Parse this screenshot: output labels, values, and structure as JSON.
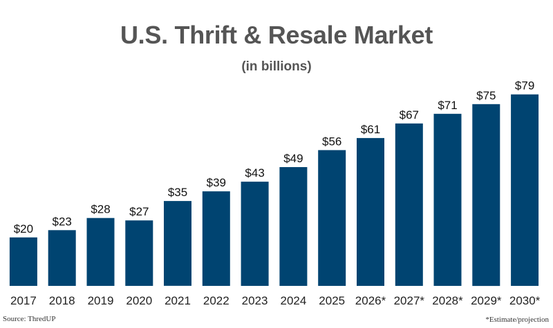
{
  "chart_data": {
    "type": "bar",
    "title": "U.S. Thrift & Resale Market",
    "subtitle": "(in billions)",
    "categories": [
      "2017",
      "2018",
      "2019",
      "2020",
      "2021",
      "2022",
      "2023",
      "2024",
      "2025",
      "2026*",
      "2027*",
      "2028*",
      "2029*",
      "2030*"
    ],
    "values": [
      20,
      23,
      28,
      27,
      35,
      39,
      43,
      49,
      56,
      61,
      67,
      71,
      75,
      79
    ],
    "value_labels": [
      "$20",
      "$23",
      "$28",
      "$27",
      "$35",
      "$39",
      "$43",
      "$49",
      "$56",
      "$61",
      "$67",
      "$71",
      "$75",
      "$79"
    ],
    "xlabel": "",
    "ylabel": "",
    "grid": false,
    "legend": "none",
    "bar_color": "#004471"
  },
  "footer": {
    "source": "Source: ThredUP",
    "note": "*Estimate/projection"
  }
}
